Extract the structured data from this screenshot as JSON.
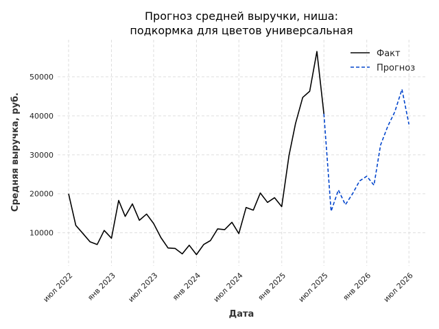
{
  "chart_data": {
    "type": "line",
    "title_lines": [
      "Прогноз средней выручки, ниша:",
      "подкормка для цветов универсальная"
    ],
    "xlabel": "Дата",
    "ylabel": "Средняя выручка, руб.",
    "x_ticks": [
      {
        "date": "2022-07",
        "label": "июл 2022"
      },
      {
        "date": "2023-01",
        "label": "янв 2023"
      },
      {
        "date": "2023-07",
        "label": "июл 2023"
      },
      {
        "date": "2024-01",
        "label": "янв 2024"
      },
      {
        "date": "2024-07",
        "label": "июл 2024"
      },
      {
        "date": "2025-01",
        "label": "янв 2025"
      },
      {
        "date": "2025-07",
        "label": "июл 2025"
      },
      {
        "date": "2026-01",
        "label": "янв 2026"
      },
      {
        "date": "2026-07",
        "label": "июл 2026"
      }
    ],
    "y_ticks": [
      10000,
      20000,
      30000,
      40000,
      50000
    ],
    "xlim": [
      "2022-05-15",
      "2026-09-15"
    ],
    "ylim": [
      1500,
      59500
    ],
    "grid": true,
    "legend_position": "top-right",
    "series": [
      {
        "name": "Факт",
        "color": "#000000",
        "style": "solid",
        "points": [
          {
            "x": "2022-07",
            "y": 20000
          },
          {
            "x": "2022-08",
            "y": 11900
          },
          {
            "x": "2022-09",
            "y": 9800
          },
          {
            "x": "2022-10",
            "y": 7700
          },
          {
            "x": "2022-11",
            "y": 7000
          },
          {
            "x": "2022-12",
            "y": 10600
          },
          {
            "x": "2023-01",
            "y": 8600
          },
          {
            "x": "2023-02",
            "y": 18300
          },
          {
            "x": "2023-03",
            "y": 14200
          },
          {
            "x": "2023-04",
            "y": 17400
          },
          {
            "x": "2023-05",
            "y": 13200
          },
          {
            "x": "2023-06",
            "y": 14800
          },
          {
            "x": "2023-07",
            "y": 12400
          },
          {
            "x": "2023-08",
            "y": 8800
          },
          {
            "x": "2023-09",
            "y": 6100
          },
          {
            "x": "2023-10",
            "y": 6000
          },
          {
            "x": "2023-11",
            "y": 4600
          },
          {
            "x": "2023-12",
            "y": 6800
          },
          {
            "x": "2024-01",
            "y": 4400
          },
          {
            "x": "2024-02",
            "y": 7000
          },
          {
            "x": "2024-03",
            "y": 8000
          },
          {
            "x": "2024-04",
            "y": 11000
          },
          {
            "x": "2024-05",
            "y": 10800
          },
          {
            "x": "2024-06",
            "y": 12700
          },
          {
            "x": "2024-07",
            "y": 9800
          },
          {
            "x": "2024-08",
            "y": 16500
          },
          {
            "x": "2024-09",
            "y": 15800
          },
          {
            "x": "2024-10",
            "y": 20200
          },
          {
            "x": "2024-11",
            "y": 17800
          },
          {
            "x": "2024-12",
            "y": 19000
          },
          {
            "x": "2025-01",
            "y": 16700
          },
          {
            "x": "2025-02",
            "y": 29800
          },
          {
            "x": "2025-03",
            "y": 38000
          },
          {
            "x": "2025-04",
            "y": 44700
          },
          {
            "x": "2025-05",
            "y": 46300
          },
          {
            "x": "2025-06",
            "y": 56500
          },
          {
            "x": "2025-07",
            "y": 40500
          }
        ]
      },
      {
        "name": "Прогноз",
        "color": "#0044cc",
        "style": "dashed",
        "points": [
          {
            "x": "2025-07",
            "y": 40500
          },
          {
            "x": "2025-08",
            "y": 15500
          },
          {
            "x": "2025-09",
            "y": 21000
          },
          {
            "x": "2025-10",
            "y": 17200
          },
          {
            "x": "2025-11",
            "y": 20000
          },
          {
            "x": "2025-12",
            "y": 23300
          },
          {
            "x": "2026-01",
            "y": 24500
          },
          {
            "x": "2026-02",
            "y": 22200
          },
          {
            "x": "2026-03",
            "y": 32500
          },
          {
            "x": "2026-04",
            "y": 37300
          },
          {
            "x": "2026-05",
            "y": 41000
          },
          {
            "x": "2026-06",
            "y": 46800
          },
          {
            "x": "2026-07",
            "y": 37800
          }
        ]
      }
    ]
  }
}
